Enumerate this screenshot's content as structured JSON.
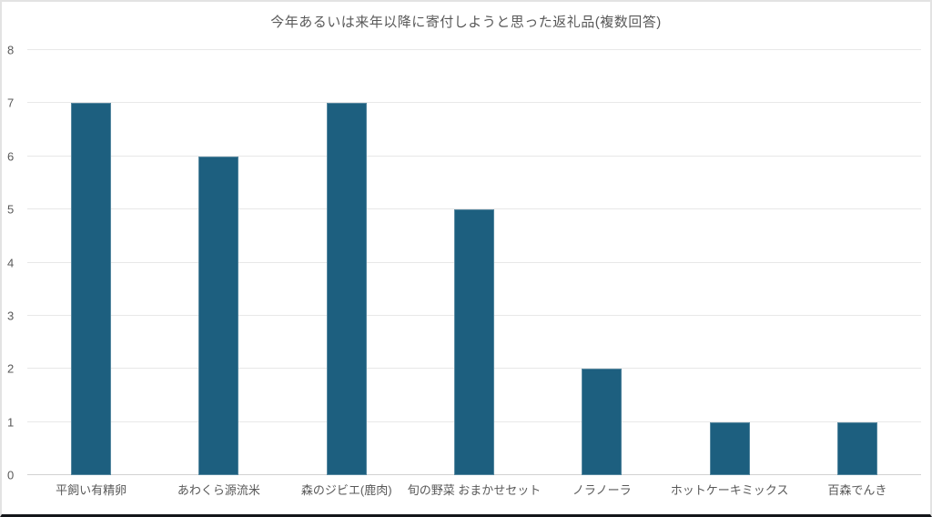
{
  "frame": {
    "background": "#ffffff",
    "border_color": "#e3e3e3",
    "bottom_rule_color": "#14161a"
  },
  "chart_data": {
    "type": "bar",
    "title": "今年あるいは来年以降に寄付しようと思った返礼品(複数回答)",
    "categories": [
      "平飼い有精卵",
      "あわくら源流米",
      "森のジビエ(鹿肉)",
      "旬の野菜 おまかせセット",
      "ノラノーラ",
      "ホットケーキミックス",
      "百森でんき"
    ],
    "values": [
      7,
      6,
      7,
      5,
      2,
      1,
      1
    ],
    "xlabel": "",
    "ylabel": "",
    "ylim": [
      0,
      8
    ],
    "yticks": [
      0,
      1,
      2,
      3,
      4,
      5,
      6,
      7,
      8
    ],
    "grid": true,
    "legend_position": "none",
    "colors": {
      "bar": "#1d5f7f",
      "grid": "#e8e8e8",
      "axis_line": "#d2d2d2",
      "text": "#595959"
    }
  }
}
